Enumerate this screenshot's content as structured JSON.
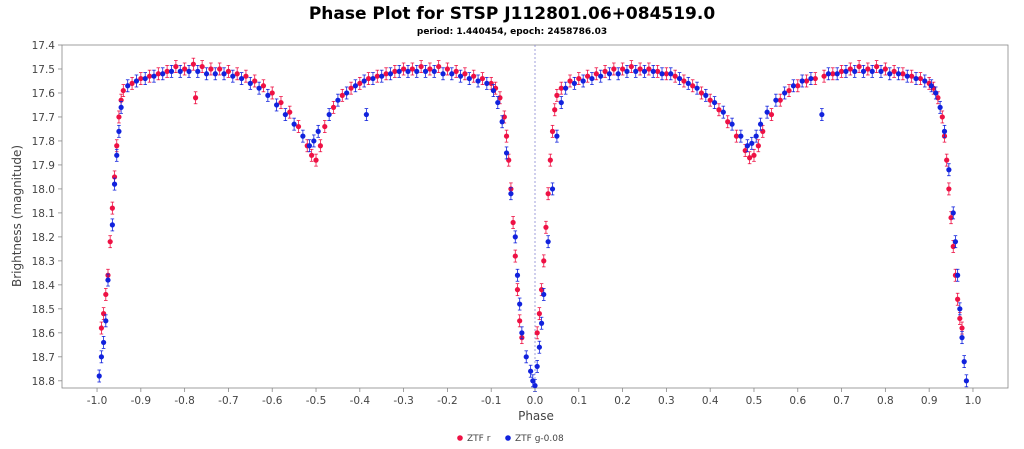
{
  "chart_data": {
    "type": "scatter",
    "title": "Phase Plot for STSP J112801.06+084519.0",
    "subtitle": "period: 1.440454, epoch: 2458786.03",
    "xlabel": "Phase",
    "ylabel": "Brightness (magnitude)",
    "xlim": [
      -1.08,
      1.08
    ],
    "ylim": [
      17.4,
      18.83
    ],
    "y_inverted": true,
    "x_ticks": [
      -1.0,
      -0.9,
      -0.8,
      -0.7,
      -0.6,
      -0.5,
      -0.4,
      -0.3,
      -0.2,
      -0.1,
      0.0,
      0.1,
      0.2,
      0.3,
      0.4,
      0.5,
      0.6,
      0.7,
      0.8,
      0.9,
      1.0
    ],
    "x_tick_labels": [
      "-1.0",
      "-0.9",
      "-0.8",
      "-0.7",
      "-0.6",
      "-0.5",
      "-0.4",
      "-0.3",
      "-0.2",
      "-0.1",
      "0.0",
      "0.1",
      "0.2",
      "0.3",
      "0.4",
      "0.5",
      "0.6",
      "0.7",
      "0.8",
      "0.9",
      "1.0"
    ],
    "y_ticks": [
      17.4,
      17.5,
      17.6,
      17.7,
      17.8,
      17.9,
      18.0,
      18.1,
      18.2,
      18.3,
      18.4,
      18.5,
      18.6,
      18.7,
      18.8
    ],
    "y_tick_labels": [
      "17.4",
      "17.5",
      "17.6",
      "17.7",
      "17.8",
      "17.9",
      "18.0",
      "18.1",
      "18.2",
      "18.3",
      "18.4",
      "18.5",
      "18.6",
      "18.7",
      "18.8"
    ],
    "reference_line_x": 0.0,
    "grid": false,
    "legend_position": "bottom-center",
    "series": [
      {
        "name": "ZTF r",
        "color": "#ee1144",
        "error": 0.025,
        "points": [
          [
            -0.99,
            18.58
          ],
          [
            -0.985,
            18.52
          ],
          [
            -0.98,
            18.44
          ],
          [
            -0.975,
            18.36
          ],
          [
            -0.97,
            18.22
          ],
          [
            -0.965,
            18.08
          ],
          [
            -0.96,
            17.95
          ],
          [
            -0.955,
            17.82
          ],
          [
            -0.95,
            17.7
          ],
          [
            -0.945,
            17.63
          ],
          [
            -0.94,
            17.59
          ],
          [
            -0.92,
            17.56
          ],
          [
            -0.9,
            17.54
          ],
          [
            -0.88,
            17.53
          ],
          [
            -0.86,
            17.52
          ],
          [
            -0.84,
            17.51
          ],
          [
            -0.82,
            17.49
          ],
          [
            -0.8,
            17.5
          ],
          [
            -0.78,
            17.48
          ],
          [
            -0.775,
            17.62
          ],
          [
            -0.76,
            17.49
          ],
          [
            -0.74,
            17.5
          ],
          [
            -0.72,
            17.5
          ],
          [
            -0.7,
            17.51
          ],
          [
            -0.68,
            17.52
          ],
          [
            -0.66,
            17.53
          ],
          [
            -0.64,
            17.55
          ],
          [
            -0.62,
            17.57
          ],
          [
            -0.6,
            17.6
          ],
          [
            -0.58,
            17.64
          ],
          [
            -0.56,
            17.68
          ],
          [
            -0.54,
            17.74
          ],
          [
            -0.52,
            17.82
          ],
          [
            -0.51,
            17.86
          ],
          [
            -0.5,
            17.88
          ],
          [
            -0.49,
            17.82
          ],
          [
            -0.48,
            17.74
          ],
          [
            -0.46,
            17.66
          ],
          [
            -0.44,
            17.61
          ],
          [
            -0.42,
            17.58
          ],
          [
            -0.4,
            17.56
          ],
          [
            -0.38,
            17.54
          ],
          [
            -0.36,
            17.53
          ],
          [
            -0.34,
            17.52
          ],
          [
            -0.32,
            17.51
          ],
          [
            -0.3,
            17.5
          ],
          [
            -0.28,
            17.5
          ],
          [
            -0.26,
            17.49
          ],
          [
            -0.24,
            17.5
          ],
          [
            -0.22,
            17.49
          ],
          [
            -0.2,
            17.5
          ],
          [
            -0.18,
            17.51
          ],
          [
            -0.16,
            17.52
          ],
          [
            -0.14,
            17.53
          ],
          [
            -0.12,
            17.54
          ],
          [
            -0.1,
            17.56
          ],
          [
            -0.09,
            17.58
          ],
          [
            -0.08,
            17.62
          ],
          [
            -0.07,
            17.7
          ],
          [
            -0.065,
            17.78
          ],
          [
            -0.06,
            17.88
          ],
          [
            -0.055,
            18.0
          ],
          [
            -0.05,
            18.14
          ],
          [
            -0.045,
            18.28
          ],
          [
            -0.04,
            18.42
          ],
          [
            -0.035,
            18.55
          ],
          [
            -0.03,
            18.62
          ],
          [
            0.005,
            18.6
          ],
          [
            0.01,
            18.52
          ],
          [
            0.015,
            18.42
          ],
          [
            0.02,
            18.3
          ],
          [
            0.025,
            18.16
          ],
          [
            0.03,
            18.02
          ],
          [
            0.035,
            17.88
          ],
          [
            0.04,
            17.76
          ],
          [
            0.045,
            17.67
          ],
          [
            0.05,
            17.61
          ],
          [
            0.06,
            17.58
          ],
          [
            0.08,
            17.55
          ],
          [
            0.1,
            17.54
          ],
          [
            0.12,
            17.53
          ],
          [
            0.14,
            17.52
          ],
          [
            0.16,
            17.51
          ],
          [
            0.18,
            17.5
          ],
          [
            0.2,
            17.5
          ],
          [
            0.22,
            17.49
          ],
          [
            0.24,
            17.5
          ],
          [
            0.26,
            17.5
          ],
          [
            0.28,
            17.51
          ],
          [
            0.3,
            17.52
          ],
          [
            0.32,
            17.53
          ],
          [
            0.34,
            17.55
          ],
          [
            0.36,
            17.57
          ],
          [
            0.38,
            17.6
          ],
          [
            0.4,
            17.63
          ],
          [
            0.42,
            17.67
          ],
          [
            0.44,
            17.72
          ],
          [
            0.46,
            17.78
          ],
          [
            0.48,
            17.84
          ],
          [
            0.49,
            17.87
          ],
          [
            0.5,
            17.86
          ],
          [
            0.51,
            17.82
          ],
          [
            0.52,
            17.76
          ],
          [
            0.54,
            17.69
          ],
          [
            0.56,
            17.63
          ],
          [
            0.58,
            17.59
          ],
          [
            0.6,
            17.57
          ],
          [
            0.62,
            17.55
          ],
          [
            0.64,
            17.54
          ],
          [
            0.66,
            17.53
          ],
          [
            0.68,
            17.52
          ],
          [
            0.7,
            17.51
          ],
          [
            0.72,
            17.5
          ],
          [
            0.74,
            17.49
          ],
          [
            0.76,
            17.5
          ],
          [
            0.78,
            17.49
          ],
          [
            0.8,
            17.5
          ],
          [
            0.82,
            17.51
          ],
          [
            0.84,
            17.52
          ],
          [
            0.86,
            17.53
          ],
          [
            0.88,
            17.54
          ],
          [
            0.9,
            17.56
          ],
          [
            0.91,
            17.58
          ],
          [
            0.92,
            17.62
          ],
          [
            0.93,
            17.7
          ],
          [
            0.935,
            17.78
          ],
          [
            0.94,
            17.88
          ],
          [
            0.945,
            18.0
          ],
          [
            0.95,
            18.12
          ],
          [
            0.955,
            18.24
          ],
          [
            0.96,
            18.36
          ],
          [
            0.965,
            18.46
          ],
          [
            0.97,
            18.54
          ],
          [
            0.975,
            18.58
          ]
        ]
      },
      {
        "name": "ZTF g-0.08",
        "color": "#1122dd",
        "error": 0.025,
        "points": [
          [
            -0.995,
            18.78
          ],
          [
            -0.99,
            18.7
          ],
          [
            -0.985,
            18.64
          ],
          [
            -0.98,
            18.55
          ],
          [
            -0.975,
            18.38
          ],
          [
            -0.965,
            18.15
          ],
          [
            -0.96,
            17.98
          ],
          [
            -0.955,
            17.86
          ],
          [
            -0.95,
            17.76
          ],
          [
            -0.945,
            17.66
          ],
          [
            -0.93,
            17.57
          ],
          [
            -0.91,
            17.55
          ],
          [
            -0.89,
            17.54
          ],
          [
            -0.87,
            17.53
          ],
          [
            -0.85,
            17.52
          ],
          [
            -0.83,
            17.51
          ],
          [
            -0.81,
            17.51
          ],
          [
            -0.79,
            17.51
          ],
          [
            -0.77,
            17.51
          ],
          [
            -0.75,
            17.52
          ],
          [
            -0.73,
            17.52
          ],
          [
            -0.71,
            17.52
          ],
          [
            -0.69,
            17.53
          ],
          [
            -0.67,
            17.54
          ],
          [
            -0.65,
            17.56
          ],
          [
            -0.63,
            17.58
          ],
          [
            -0.61,
            17.61
          ],
          [
            -0.59,
            17.65
          ],
          [
            -0.57,
            17.69
          ],
          [
            -0.55,
            17.73
          ],
          [
            -0.53,
            17.78
          ],
          [
            -0.515,
            17.82
          ],
          [
            -0.505,
            17.8
          ],
          [
            -0.495,
            17.76
          ],
          [
            -0.47,
            17.69
          ],
          [
            -0.45,
            17.63
          ],
          [
            -0.43,
            17.6
          ],
          [
            -0.41,
            17.57
          ],
          [
            -0.39,
            17.55
          ],
          [
            -0.385,
            17.69
          ],
          [
            -0.37,
            17.54
          ],
          [
            -0.35,
            17.53
          ],
          [
            -0.33,
            17.52
          ],
          [
            -0.31,
            17.51
          ],
          [
            -0.29,
            17.51
          ],
          [
            -0.27,
            17.51
          ],
          [
            -0.25,
            17.51
          ],
          [
            -0.23,
            17.51
          ],
          [
            -0.21,
            17.52
          ],
          [
            -0.19,
            17.52
          ],
          [
            -0.17,
            17.53
          ],
          [
            -0.15,
            17.54
          ],
          [
            -0.13,
            17.55
          ],
          [
            -0.11,
            17.56
          ],
          [
            -0.095,
            17.59
          ],
          [
            -0.085,
            17.64
          ],
          [
            -0.075,
            17.72
          ],
          [
            -0.065,
            17.85
          ],
          [
            -0.055,
            18.02
          ],
          [
            -0.045,
            18.2
          ],
          [
            -0.04,
            18.36
          ],
          [
            -0.035,
            18.48
          ],
          [
            -0.03,
            18.6
          ],
          [
            -0.02,
            18.7
          ],
          [
            -0.01,
            18.76
          ],
          [
            -0.005,
            18.8
          ],
          [
            0.0,
            18.82
          ],
          [
            0.005,
            18.74
          ],
          [
            0.01,
            18.66
          ],
          [
            0.015,
            18.56
          ],
          [
            0.02,
            18.44
          ],
          [
            0.03,
            18.22
          ],
          [
            0.04,
            18.0
          ],
          [
            0.05,
            17.78
          ],
          [
            0.06,
            17.64
          ],
          [
            0.07,
            17.58
          ],
          [
            0.09,
            17.56
          ],
          [
            0.11,
            17.55
          ],
          [
            0.13,
            17.54
          ],
          [
            0.15,
            17.53
          ],
          [
            0.17,
            17.52
          ],
          [
            0.19,
            17.52
          ],
          [
            0.21,
            17.51
          ],
          [
            0.23,
            17.51
          ],
          [
            0.25,
            17.51
          ],
          [
            0.27,
            17.51
          ],
          [
            0.29,
            17.52
          ],
          [
            0.31,
            17.52
          ],
          [
            0.33,
            17.54
          ],
          [
            0.35,
            17.56
          ],
          [
            0.37,
            17.58
          ],
          [
            0.39,
            17.61
          ],
          [
            0.41,
            17.64
          ],
          [
            0.43,
            17.68
          ],
          [
            0.45,
            17.73
          ],
          [
            0.47,
            17.78
          ],
          [
            0.485,
            17.82
          ],
          [
            0.495,
            17.81
          ],
          [
            0.505,
            17.78
          ],
          [
            0.515,
            17.73
          ],
          [
            0.53,
            17.68
          ],
          [
            0.55,
            17.63
          ],
          [
            0.57,
            17.6
          ],
          [
            0.59,
            17.57
          ],
          [
            0.61,
            17.55
          ],
          [
            0.63,
            17.54
          ],
          [
            0.655,
            17.69
          ],
          [
            0.67,
            17.52
          ],
          [
            0.69,
            17.52
          ],
          [
            0.71,
            17.51
          ],
          [
            0.73,
            17.51
          ],
          [
            0.75,
            17.51
          ],
          [
            0.77,
            17.51
          ],
          [
            0.79,
            17.51
          ],
          [
            0.81,
            17.52
          ],
          [
            0.83,
            17.52
          ],
          [
            0.85,
            17.53
          ],
          [
            0.87,
            17.54
          ],
          [
            0.89,
            17.55
          ],
          [
            0.905,
            17.57
          ],
          [
            0.915,
            17.6
          ],
          [
            0.925,
            17.66
          ],
          [
            0.935,
            17.76
          ],
          [
            0.945,
            17.92
          ],
          [
            0.955,
            18.1
          ],
          [
            0.96,
            18.22
          ],
          [
            0.965,
            18.36
          ],
          [
            0.97,
            18.5
          ],
          [
            0.975,
            18.62
          ],
          [
            0.98,
            18.72
          ],
          [
            0.985,
            18.8
          ]
        ]
      }
    ]
  }
}
